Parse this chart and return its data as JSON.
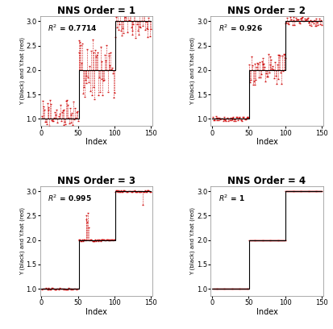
{
  "titles": [
    "NNS Order = 1",
    "NNS Order = 2",
    "NNS Order = 3",
    "NNS Order = 4"
  ],
  "r2_values": [
    "0.7714",
    "0.926",
    "0.995",
    "1"
  ],
  "ylabel": "Y (black) and Y.hat (red)",
  "xlabel": "Index",
  "ylim": [
    0.85,
    3.1
  ],
  "xlim": [
    -2,
    152
  ],
  "yticks": [
    1.0,
    1.5,
    2.0,
    2.5,
    3.0
  ],
  "xticks": [
    0,
    50,
    100,
    150
  ],
  "n_total": 150,
  "background_color": "#ffffff",
  "line_color": "#000000",
  "scatter_color": "#cc0000",
  "figsize": [
    4.13,
    4.08
  ],
  "dpi": 100
}
